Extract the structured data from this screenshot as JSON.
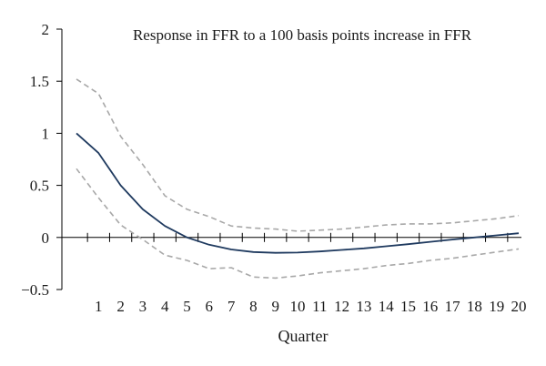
{
  "chart_data": {
    "type": "line",
    "title": "Response in FFR to a 100 basis points increase in FFR",
    "xlabel": "Quarter",
    "ylabel": "",
    "xlim": [
      0,
      20
    ],
    "ylim": [
      -0.5,
      2
    ],
    "grid": false,
    "legend": "none",
    "x_tick_labels": [
      "1",
      "2",
      "3",
      "4",
      "5",
      "6",
      "7",
      "8",
      "9",
      "10",
      "11",
      "12",
      "13",
      "14",
      "15",
      "16",
      "17",
      "18",
      "19",
      "20"
    ],
    "y_tick_labels": [
      "2",
      "1.5",
      "1",
      "0.5",
      "0",
      "−0.5"
    ],
    "x": [
      0,
      1,
      2,
      3,
      4,
      5,
      6,
      7,
      8,
      9,
      10,
      11,
      12,
      13,
      14,
      15,
      16,
      17,
      18,
      19,
      20
    ],
    "series": [
      {
        "style": "solid",
        "color": "#1f3a5f",
        "values": [
          1.0,
          0.81,
          0.5,
          0.27,
          0.11,
          0.0,
          -0.07,
          -0.115,
          -0.14,
          -0.148,
          -0.145,
          -0.135,
          -0.12,
          -0.105,
          -0.085,
          -0.065,
          -0.042,
          -0.02,
          0.0,
          0.02,
          0.04
        ]
      },
      {
        "style": "dashed",
        "color": "#a8a8a8",
        "values": [
          1.52,
          1.38,
          0.97,
          0.7,
          0.4,
          0.27,
          0.2,
          0.11,
          0.09,
          0.08,
          0.06,
          0.07,
          0.08,
          0.1,
          0.12,
          0.13,
          0.13,
          0.14,
          0.16,
          0.18,
          0.21
        ]
      },
      {
        "style": "dashed",
        "color": "#a8a8a8",
        "values": [
          0.66,
          0.38,
          0.12,
          -0.02,
          -0.17,
          -0.22,
          -0.3,
          -0.29,
          -0.38,
          -0.39,
          -0.37,
          -0.34,
          -0.32,
          -0.3,
          -0.27,
          -0.25,
          -0.22,
          -0.2,
          -0.17,
          -0.14,
          -0.11
        ]
      }
    ]
  }
}
